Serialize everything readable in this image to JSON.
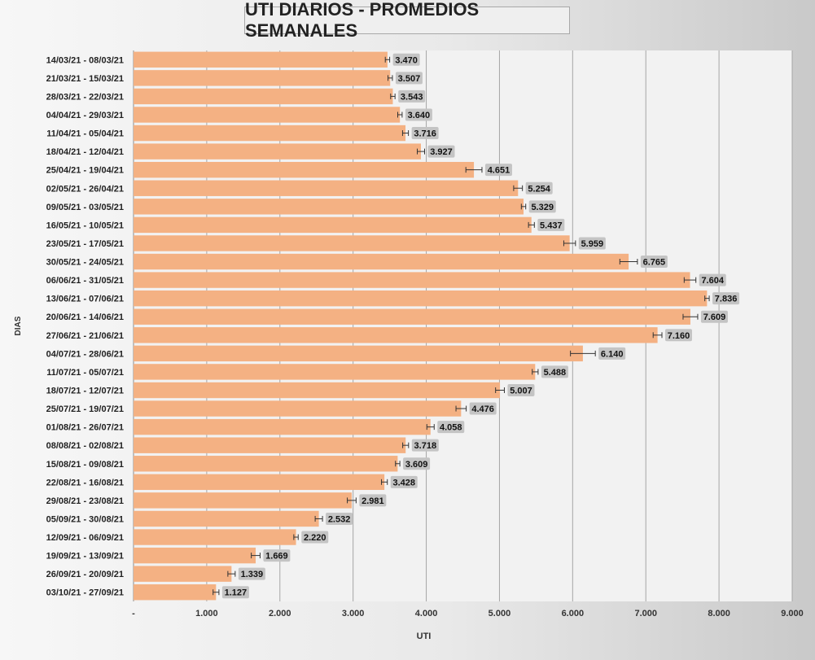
{
  "chart_data": {
    "type": "bar",
    "orientation": "horizontal",
    "title": "UTI DIARIOS - PROMEDIOS SEMANALES",
    "xlabel": "UTI",
    "ylabel": "DIAS",
    "xlim": [
      0,
      9000
    ],
    "x_ticks": [
      "-",
      "1.000",
      "2.000",
      "3.000",
      "4.000",
      "5.000",
      "6.000",
      "7.000",
      "8.000",
      "9.000"
    ],
    "grid": true,
    "error_bars": true,
    "colors": {
      "bar": "#f4b183",
      "label_bg": "#c4c4c4",
      "plot_bg": "#f2f2f2",
      "grid": "#a6a6a6"
    },
    "categories": [
      "14/03/21 - 08/03/21",
      "21/03/21 - 15/03/21",
      "28/03/21 - 22/03/21",
      "04/04/21 - 29/03/21",
      "11/04/21 - 05/04/21",
      "18/04/21 - 12/04/21",
      "25/04/21 - 19/04/21",
      "02/05/21 - 26/04/21",
      "09/05/21 - 03/05/21",
      "16/05/21 - 10/05/21",
      "23/05/21 - 17/05/21",
      "30/05/21 - 24/05/21",
      "06/06/21 - 31/05/21",
      "13/06/21 - 07/06/21",
      "20/06/21 - 14/06/21",
      "27/06/21 - 21/06/21",
      "04/07/21 - 28/06/21",
      "11/07/21 - 05/07/21",
      "18/07/21 - 12/07/21",
      "25/07/21 - 19/07/21",
      "01/08/21 - 26/07/21",
      "08/08/21 - 02/08/21",
      "15/08/21 - 09/08/21",
      "22/08/21 - 16/08/21",
      "29/08/21 - 23/08/21",
      "05/09/21 - 30/08/21",
      "12/09/21 - 06/09/21",
      "19/09/21 - 13/09/21",
      "26/09/21 - 20/09/21",
      "03/10/21 - 27/09/21"
    ],
    "values": [
      3470,
      3507,
      3543,
      3640,
      3716,
      3927,
      4651,
      5254,
      5329,
      5437,
      5959,
      6765,
      7604,
      7836,
      7609,
      7160,
      6140,
      5488,
      5007,
      4476,
      4058,
      3718,
      3609,
      3428,
      2981,
      2532,
      2220,
      1669,
      1339,
      1127
    ],
    "value_labels": [
      "3.470",
      "3.507",
      "3.543",
      "3.640",
      "3.716",
      "3.927",
      "4.651",
      "5.254",
      "5.329",
      "5.437",
      "5.959",
      "6.765",
      "7.604",
      "7.836",
      "7.609",
      "7.160",
      "6.140",
      "5.488",
      "5.007",
      "4.476",
      "4.058",
      "3.718",
      "3.609",
      "3.428",
      "2.981",
      "2.532",
      "2.220",
      "1.669",
      "1.339",
      "1.127"
    ],
    "errors": [
      30,
      30,
      30,
      30,
      40,
      50,
      110,
      60,
      30,
      40,
      80,
      120,
      80,
      30,
      100,
      60,
      170,
      40,
      60,
      70,
      50,
      40,
      30,
      40,
      60,
      50,
      30,
      60,
      50,
      40
    ]
  }
}
